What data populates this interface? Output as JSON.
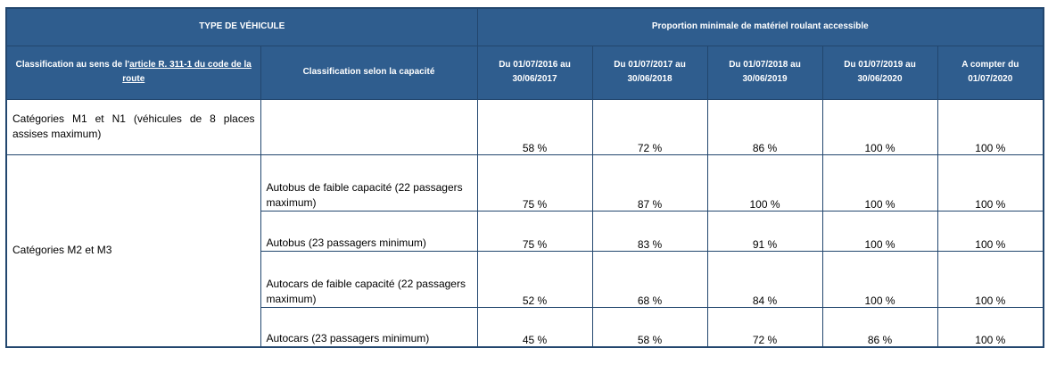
{
  "header": {
    "type_vehicule": "TYPE DE VÉHICULE",
    "proportion_title": "Proportion minimale de matériel roulant accessible",
    "classification_prefix": "Classification au sens de l'",
    "classification_link": "article R. 311-1 du code de la route",
    "classification_capacite": "Classification selon la capacité",
    "periods": [
      "Du 01/07/2016 au 30/06/2017",
      "Du 01/07/2017 au 30/06/2018",
      "Du 01/07/2018 au 30/06/2019",
      "Du 01/07/2019 au 30/06/2020",
      "A compter du 01/07/2020"
    ]
  },
  "rows": [
    {
      "category": "Catégories M1 et N1 (véhicules de 8 places assises maximum)",
      "capacity": "",
      "values": [
        "58 %",
        "72 %",
        "86 %",
        "100 %",
        "100 %"
      ]
    },
    {
      "category": "Catégories M2 et M3",
      "capacity": "Autobus de faible capacité (22 passagers maximum)",
      "values": [
        "75 %",
        "87 %",
        "100 %",
        "100 %",
        "100 %"
      ]
    },
    {
      "category": "",
      "capacity": "Autobus (23 passagers minimum)",
      "values": [
        "75 %",
        "83 %",
        "91 %",
        "100 %",
        "100 %"
      ]
    },
    {
      "category": "",
      "capacity": "Autocars de faible capacité (22 passagers maximum)",
      "values": [
        "52 %",
        "68 %",
        "84 %",
        "100 %",
        "100 %"
      ]
    },
    {
      "category": "",
      "capacity": "Autocars (23 passagers minimum)",
      "values": [
        "45 %",
        "58 %",
        "72 %",
        "86 %",
        "100 %"
      ]
    }
  ]
}
